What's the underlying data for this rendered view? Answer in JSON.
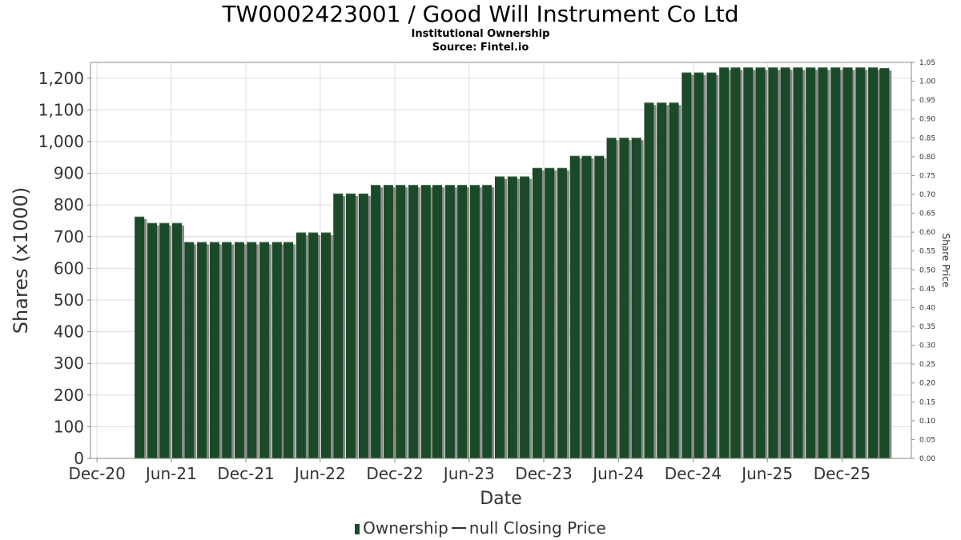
{
  "chart_data": {
    "type": "bar",
    "title": "TW0002423001 / Good Will Instrument Co Ltd",
    "subtitle_lines": [
      "Institutional Ownership",
      "Source: Fintel.io"
    ],
    "xlabel": "Date",
    "ylabel": "Shares (x1000)",
    "y2label": "Share Price",
    "ylim": [
      0,
      1250
    ],
    "y_ticks": [
      0,
      100,
      200,
      300,
      400,
      500,
      600,
      700,
      800,
      900,
      1000,
      1100,
      1200
    ],
    "y_tick_labels": [
      "0",
      "100",
      "200",
      "300",
      "400",
      "500",
      "600",
      "700",
      "800",
      "900",
      "1,000",
      "1,100",
      "1,200"
    ],
    "y2lim": [
      0,
      1.05
    ],
    "y2_tick_labels": [
      "0.00",
      "0.05",
      "0.10",
      "0.15",
      "0.20",
      "0.25",
      "0.30",
      "0.35",
      "0.40",
      "0.45",
      "0.50",
      "0.55",
      "0.60",
      "0.65",
      "0.70",
      "0.75",
      "0.80",
      "0.85",
      "0.90",
      "0.95",
      "1.00",
      "1.05"
    ],
    "x_ticks": [
      "2020-12-01",
      "2021-06-01",
      "2021-12-01",
      "2022-06-01",
      "2022-12-01",
      "2023-06-01",
      "2023-12-01",
      "2024-06-01",
      "2024-12-01",
      "2025-06-01",
      "2025-12-01"
    ],
    "x_tick_labels": [
      "Dec-20",
      "Jun-21",
      "Dec-21",
      "Jun-22",
      "Dec-22",
      "Jun-23",
      "Dec-23",
      "Jun-24",
      "Dec-24",
      "Jun-25",
      "Dec-25"
    ],
    "x_range": [
      "2020-11-15",
      "2026-05-20"
    ],
    "x": [
      "2021-03-15",
      "2021-04-15",
      "2021-05-15",
      "2021-06-15",
      "2021-07-15",
      "2021-08-15",
      "2021-09-15",
      "2021-10-15",
      "2021-11-15",
      "2021-12-15",
      "2022-01-15",
      "2022-02-15",
      "2022-03-15",
      "2022-04-15",
      "2022-05-15",
      "2022-06-15",
      "2022-07-15",
      "2022-08-15",
      "2022-09-15",
      "2022-10-15",
      "2022-11-15",
      "2022-12-15",
      "2023-01-15",
      "2023-02-15",
      "2023-03-15",
      "2023-04-15",
      "2023-05-15",
      "2023-06-15",
      "2023-07-15",
      "2023-08-15",
      "2023-09-15",
      "2023-10-15",
      "2023-11-15",
      "2023-12-15",
      "2024-01-15",
      "2024-02-15",
      "2024-03-15",
      "2024-04-15",
      "2024-05-15",
      "2024-06-15",
      "2024-07-15",
      "2024-08-15",
      "2024-09-15",
      "2024-10-15",
      "2024-11-15",
      "2024-12-15",
      "2025-01-15",
      "2025-02-15",
      "2025-03-15",
      "2025-04-15",
      "2025-05-15",
      "2025-06-15",
      "2025-07-15",
      "2025-08-15",
      "2025-09-15",
      "2025-10-15",
      "2025-11-15",
      "2025-12-15",
      "2026-01-15",
      "2026-02-15",
      "2026-03-15"
    ],
    "series": [
      {
        "name": "Ownership",
        "color": "#1a4a28",
        "values": [
          763,
          743,
          743,
          743,
          683,
          683,
          683,
          683,
          683,
          683,
          683,
          683,
          683,
          713,
          713,
          713,
          836,
          836,
          836,
          863,
          863,
          863,
          863,
          863,
          863,
          863,
          863,
          863,
          863,
          890,
          890,
          890,
          917,
          917,
          917,
          955,
          955,
          955,
          1012,
          1012,
          1012,
          1123,
          1123,
          1123,
          1218,
          1218,
          1218,
          1234,
          1234,
          1234,
          1234,
          1234,
          1234,
          1234,
          1234,
          1234,
          1234,
          1234,
          1234,
          1234,
          1232
        ]
      }
    ],
    "legend": {
      "placement": "bottom",
      "entries": [
        "Ownership",
        "null Closing Price"
      ]
    },
    "grid": true,
    "colors": {
      "bar": "#1a4a28",
      "bar_shadow": "#8a8a8a",
      "grid": "#dcdcdc",
      "axis": "#888888"
    }
  }
}
